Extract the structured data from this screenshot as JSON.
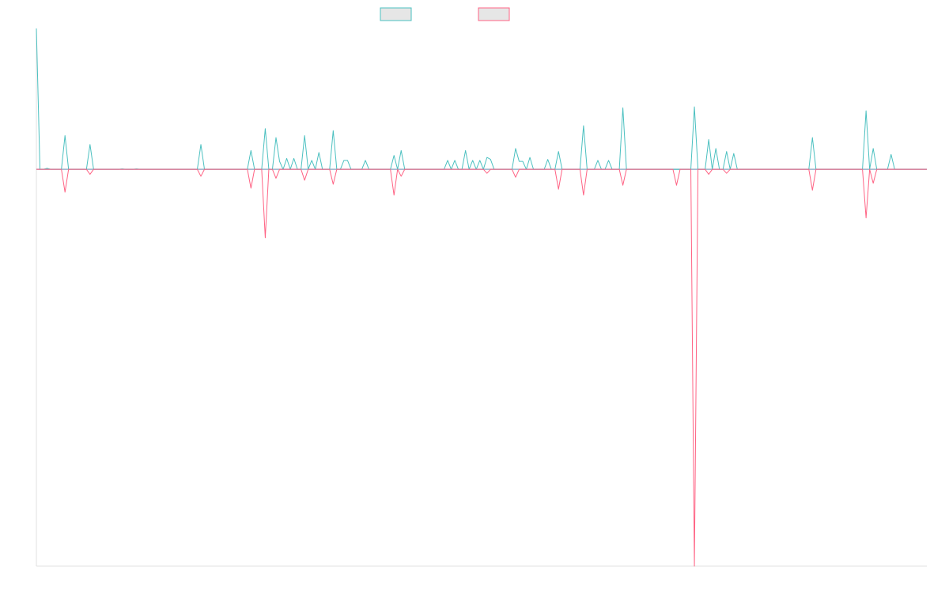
{
  "chart_data": {
    "type": "line",
    "title": "",
    "xlabel": "",
    "ylabel": "",
    "grid": false,
    "legend": "top-center",
    "colors": {
      "series_a": "#4bc0c0",
      "series_b": "#ff6384",
      "axis": "#e0e0e0",
      "swatch_fill": "#e6e6e6"
    },
    "x": [
      0,
      1,
      2,
      3,
      4,
      5,
      6,
      7,
      8,
      9,
      10,
      11,
      12,
      13,
      14,
      15,
      16,
      17,
      18,
      19,
      20,
      21,
      22,
      23,
      24,
      25,
      26,
      27,
      28,
      29,
      30,
      31,
      32,
      33,
      34,
      35,
      36,
      37,
      38,
      39,
      40,
      41,
      42,
      43,
      44,
      45,
      46,
      47,
      48,
      49,
      50,
      51,
      52,
      53,
      54,
      55,
      56,
      57,
      58,
      59,
      60,
      61,
      62,
      63,
      64,
      65,
      66,
      67,
      68,
      69,
      70,
      71,
      72,
      73,
      74,
      75,
      76,
      77,
      78,
      79,
      80,
      81,
      82,
      83,
      84,
      85,
      86,
      87,
      88,
      89,
      90,
      91,
      92,
      93,
      94,
      95,
      96,
      97,
      98,
      99,
      100,
      101,
      102,
      103,
      104,
      105,
      106,
      107,
      108,
      109,
      110,
      111,
      112,
      113,
      114,
      115,
      116,
      117,
      118,
      119,
      120,
      121,
      122,
      123,
      124,
      125,
      126,
      127,
      128,
      129,
      130,
      131,
      132,
      133,
      134,
      135,
      136,
      137,
      138,
      139,
      140,
      141,
      142,
      143,
      144,
      145,
      146,
      147,
      148,
      149,
      150,
      151,
      152,
      153,
      154,
      155,
      156,
      157,
      158,
      159,
      160,
      161,
      162,
      163,
      164,
      165,
      166,
      167,
      168,
      169,
      170,
      171,
      172,
      173,
      174,
      175,
      176,
      177,
      178,
      179,
      180,
      181,
      182,
      183,
      184,
      185,
      186,
      187,
      188,
      189,
      190,
      191,
      192,
      193,
      194,
      195,
      196,
      197,
      198,
      199,
      200,
      201,
      202,
      203,
      204,
      205,
      206,
      207,
      208,
      209,
      210,
      211,
      212,
      213,
      214,
      215,
      216,
      217,
      218,
      219,
      220,
      221,
      222,
      223,
      224,
      225,
      226,
      227,
      228,
      229,
      230,
      231,
      232,
      233,
      234,
      235,
      236,
      237,
      238,
      239,
      240,
      241,
      242,
      243,
      244,
      245,
      246,
      247,
      248,
      249
    ],
    "xlim": [
      0,
      249
    ],
    "ylim": [
      -20,
      7.1
    ],
    "series": [
      {
        "values": [
          7.1,
          0,
          0,
          0.05,
          0,
          0,
          0,
          0,
          1.7,
          0,
          0,
          0,
          0,
          0,
          0,
          1.25,
          0,
          0,
          0,
          0,
          0,
          0,
          0,
          0,
          0.02,
          0,
          0,
          0,
          0.02,
          0,
          0,
          0,
          0,
          0,
          0,
          0,
          0,
          0,
          0,
          0,
          0,
          0,
          0,
          0,
          0,
          0,
          1.25,
          0,
          0,
          0,
          0,
          0,
          0,
          0,
          0,
          0,
          0,
          0,
          0,
          0,
          0.95,
          0,
          0,
          0,
          2.05,
          0,
          0,
          1.6,
          0.4,
          0,
          0.55,
          0,
          0.55,
          0,
          0,
          1.7,
          0,
          0.45,
          0,
          0.85,
          0,
          0,
          0,
          1.95,
          0,
          0,
          0.45,
          0.45,
          0,
          0,
          0,
          0,
          0.45,
          0,
          0,
          0,
          0,
          0,
          0,
          0,
          0.7,
          0,
          0.95,
          0,
          0,
          0,
          0,
          0,
          0,
          0,
          0,
          0,
          0,
          0,
          0,
          0.45,
          0,
          0.45,
          0,
          0,
          0.95,
          0,
          0.45,
          0,
          0.45,
          0,
          0.6,
          0.5,
          0,
          0,
          0,
          0,
          0,
          0,
          1.05,
          0.4,
          0.4,
          0,
          0.6,
          0,
          0,
          0,
          0,
          0.5,
          0,
          0,
          0.9,
          0,
          0,
          0,
          0,
          0,
          0,
          2.2,
          0,
          0,
          0,
          0.45,
          0,
          0,
          0.45,
          0,
          0,
          0,
          3.1,
          0,
          0,
          0,
          0,
          0,
          0,
          0,
          0,
          0,
          0,
          0,
          0,
          0,
          0,
          0,
          0,
          0,
          0,
          0,
          3.15,
          0,
          0,
          0,
          1.5,
          0,
          1.05,
          0,
          0,
          0.9,
          0,
          0.8,
          0,
          0,
          0,
          0,
          0,
          0,
          0,
          0,
          0,
          0,
          0,
          0,
          0,
          0,
          0,
          0,
          0,
          0,
          0,
          0,
          0,
          1.6,
          0,
          0,
          0,
          0,
          0,
          0,
          0,
          0,
          0,
          0,
          0,
          0,
          0,
          0,
          2.95,
          0,
          1.05,
          0,
          0,
          0,
          0,
          0.75,
          0,
          0,
          0,
          0,
          0,
          0,
          0,
          0,
          0,
          0
        ]
      },
      {
        "values": [
          0,
          0,
          0,
          0,
          0,
          0,
          0,
          0,
          -1.15,
          0,
          0,
          0,
          0,
          0,
          0,
          -0.25,
          0,
          0,
          0,
          0,
          0,
          0,
          0,
          0,
          0,
          0,
          0,
          0,
          0,
          0,
          0,
          0,
          0,
          0,
          0,
          0,
          0,
          0,
          0,
          0,
          0,
          0,
          0,
          0,
          0,
          0,
          -0.35,
          0,
          0,
          0,
          0,
          0,
          0,
          0,
          0,
          0,
          0,
          0,
          0,
          0,
          -0.95,
          0,
          0,
          0,
          -3.45,
          0,
          0,
          -0.45,
          0,
          0,
          0,
          0,
          0,
          0,
          0,
          -0.55,
          0,
          0,
          0,
          0,
          0,
          0,
          0,
          -0.75,
          0,
          0,
          0,
          0,
          0,
          0,
          0,
          0,
          0,
          0,
          0,
          0,
          0,
          0,
          0,
          0,
          -1.3,
          0,
          -0.35,
          0,
          0,
          0,
          0,
          0,
          0,
          0,
          0,
          0,
          0,
          0,
          0,
          0,
          0,
          0,
          0,
          0,
          0,
          0,
          0,
          0,
          0,
          0,
          -0.2,
          0,
          0,
          0,
          0,
          0,
          0,
          0,
          -0.4,
          0,
          0,
          0,
          0,
          0,
          0,
          0,
          0,
          0,
          0,
          0,
          -1,
          0,
          0,
          0,
          0,
          0,
          0,
          -1.3,
          0,
          0,
          0,
          0,
          0,
          0,
          0,
          0,
          0,
          0,
          -0.8,
          0,
          0,
          0,
          0,
          0,
          0,
          0,
          0,
          0,
          0,
          0,
          0,
          0,
          0,
          -0.8,
          0,
          0,
          0,
          0,
          -20,
          0,
          0,
          0,
          -0.25,
          0,
          0,
          0,
          0,
          -0.2,
          0,
          0,
          0,
          0,
          0,
          0,
          0,
          0,
          0,
          0,
          0,
          0,
          0,
          0,
          0,
          0,
          0,
          0,
          0,
          0,
          0,
          0,
          0,
          -1.05,
          0,
          0,
          0,
          0,
          0,
          0,
          0,
          0,
          0,
          0,
          0,
          0,
          0,
          0,
          -2.45,
          0,
          -0.7,
          0,
          0,
          0,
          0,
          0,
          0,
          0,
          0,
          0,
          0,
          0,
          0,
          0,
          0,
          0
        ]
      }
    ]
  }
}
